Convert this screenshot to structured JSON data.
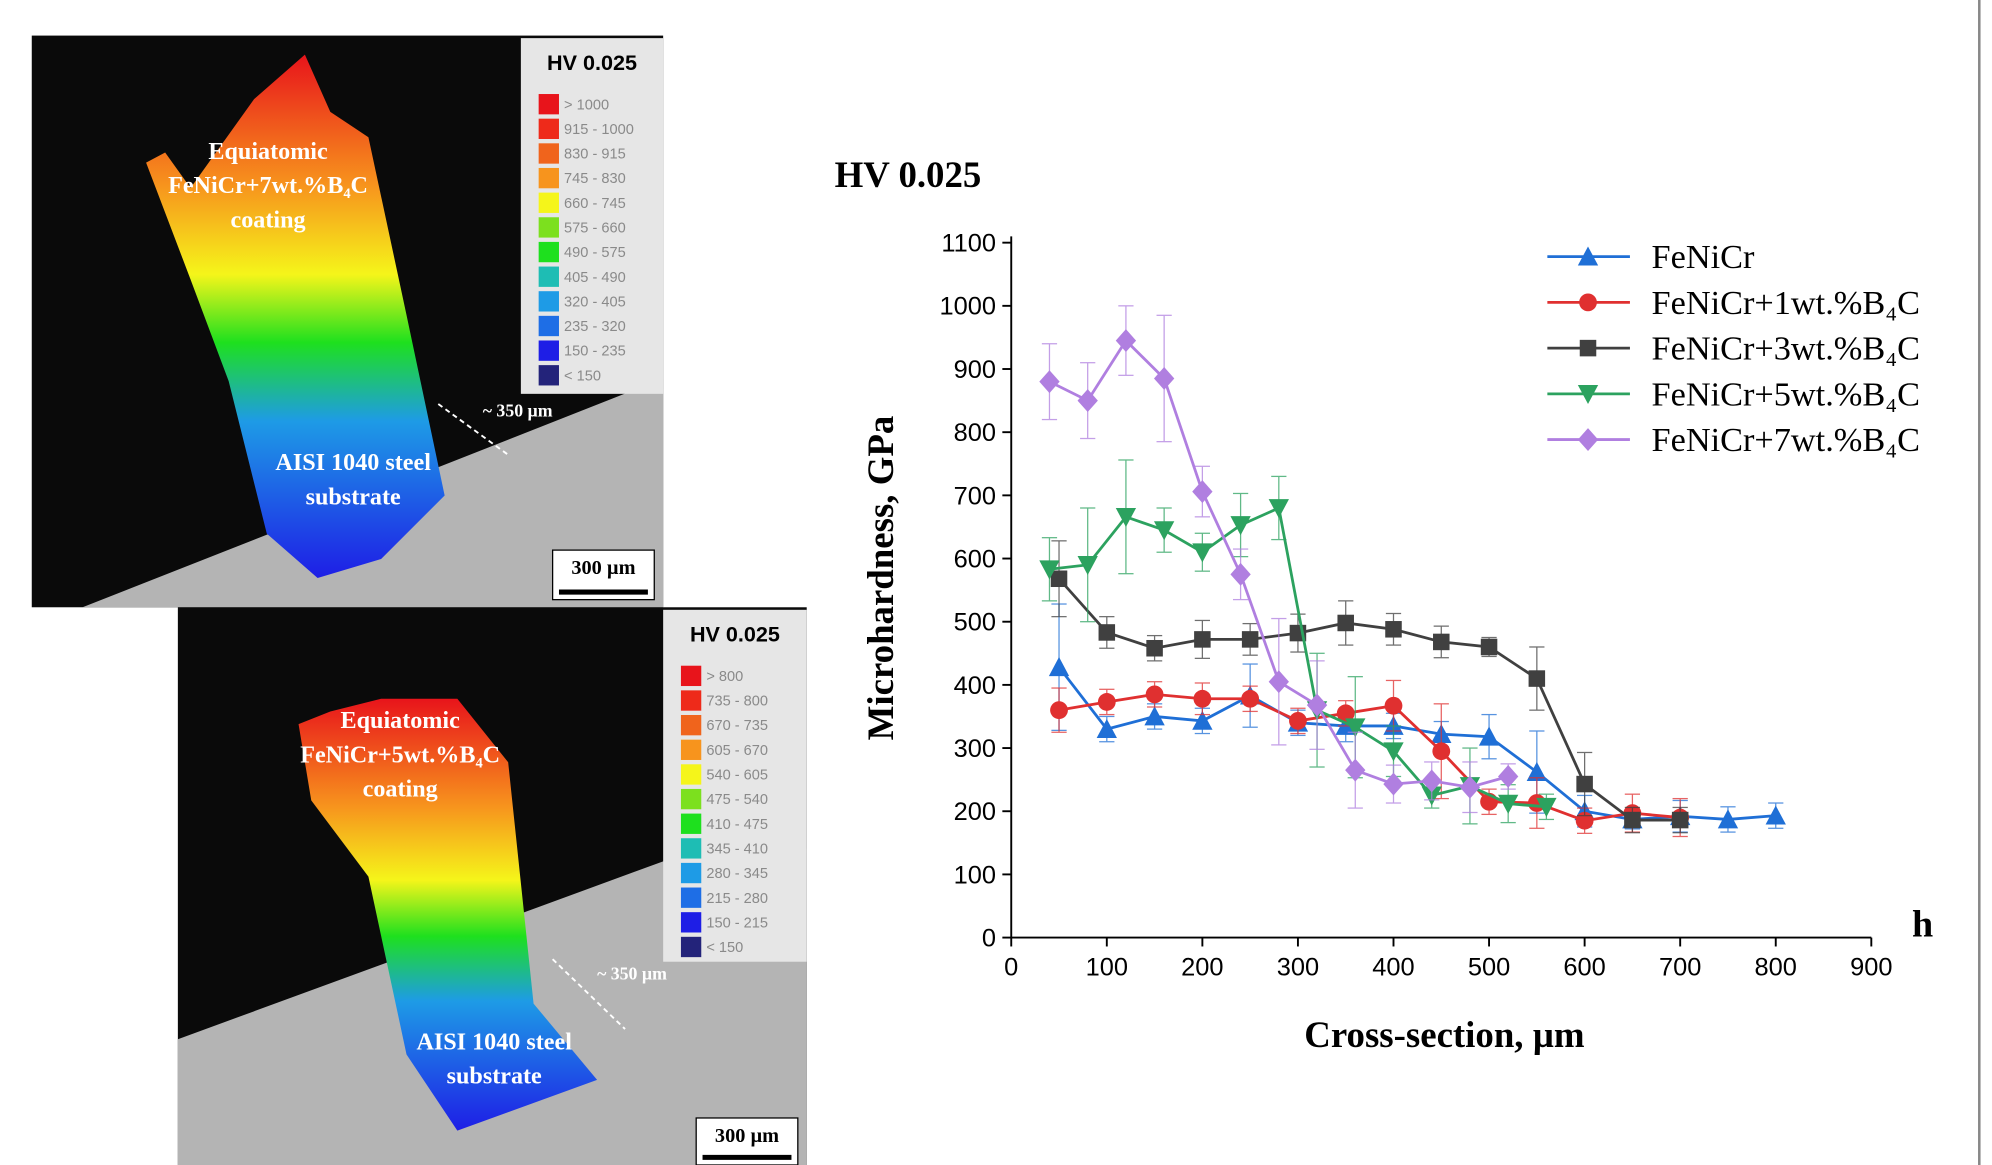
{
  "maps": [
    {
      "legend_title": "HV 0.025",
      "legend": [
        {
          "label": "> 1000",
          "color": "#e8141b"
        },
        {
          "label": "915 - 1000",
          "color": "#ee2a1a"
        },
        {
          "label": "830 - 915",
          "color": "#f0641c"
        },
        {
          "label": "745 - 830",
          "color": "#f7941d"
        },
        {
          "label": "660 - 745",
          "color": "#f5f51a"
        },
        {
          "label": "575 - 660",
          "color": "#7ce01e"
        },
        {
          "label": "490 - 575",
          "color": "#1ee01e"
        },
        {
          "label": "405 - 490",
          "color": "#1ebdb4"
        },
        {
          "label": "320 - 405",
          "color": "#1e9be6"
        },
        {
          "label": "235 - 320",
          "color": "#1e6ee6"
        },
        {
          "label": "150 - 235",
          "color": "#1e1ee6"
        },
        {
          "label": "< 150",
          "color": "#23237a"
        }
      ],
      "coating_label": [
        "Equiatomic",
        "FeNiCr+7wt.%B₄C",
        "coating"
      ],
      "distance_label": "~ 350 µm",
      "substrate_label": [
        "AISI 1040 steel",
        "substrate"
      ],
      "scale_bar": "300 µm"
    },
    {
      "legend_title": "HV 0.025",
      "legend": [
        {
          "label": "> 800",
          "color": "#e8141b"
        },
        {
          "label": "735 - 800",
          "color": "#ee2a1a"
        },
        {
          "label": "670 - 735",
          "color": "#f0641c"
        },
        {
          "label": "605 - 670",
          "color": "#f7941d"
        },
        {
          "label": "540 - 605",
          "color": "#f5f51a"
        },
        {
          "label": "475 - 540",
          "color": "#7ce01e"
        },
        {
          "label": "410 - 475",
          "color": "#1ee01e"
        },
        {
          "label": "345 - 410",
          "color": "#1ebdb4"
        },
        {
          "label": "280 - 345",
          "color": "#1e9be6"
        },
        {
          "label": "215 - 280",
          "color": "#1e6ee6"
        },
        {
          "label": "150 - 215",
          "color": "#1e1ee6"
        },
        {
          "label": "< 150",
          "color": "#23237a"
        }
      ],
      "coating_label": [
        "Equiatomic",
        "FeNiCr+5wt.%B₄C",
        "coating"
      ],
      "distance_label": "~ 350 µm",
      "substrate_label": [
        "AISI 1040 steel",
        "substrate"
      ],
      "scale_bar": "300 µm"
    }
  ],
  "chart_data": {
    "type": "line",
    "title": "HV 0.025",
    "y_label": "Microhardness, GPa",
    "x_label": "Cross-section, µm",
    "x_axis_end_label": "h",
    "xlim": [
      0,
      900
    ],
    "xticks": [
      0,
      100,
      200,
      300,
      400,
      500,
      600,
      700,
      800,
      900
    ],
    "ylim": [
      0,
      1100
    ],
    "yticks": [
      0,
      100,
      200,
      300,
      400,
      500,
      600,
      700,
      800,
      900,
      1000,
      1100
    ],
    "legend_position": "upper right",
    "series": [
      {
        "name": "FeNiCr",
        "color": "#1f6fd6",
        "marker": "triangle-up",
        "x": [
          50,
          100,
          150,
          200,
          250,
          300,
          350,
          400,
          450,
          500,
          550,
          600,
          650,
          700,
          750,
          800
        ],
        "values": [
          428,
          330,
          350,
          343,
          383,
          340,
          335,
          335,
          322,
          318,
          262,
          200,
          187,
          192,
          187,
          193
        ],
        "errors": [
          100,
          20,
          20,
          20,
          50,
          20,
          25,
          20,
          20,
          35,
          65,
          25,
          15,
          25,
          20,
          20
        ]
      },
      {
        "name": "FeNiCr+1wt.%B₄C",
        "color": "#e03030",
        "marker": "circle",
        "x": [
          50,
          100,
          150,
          200,
          250,
          300,
          350,
          400,
          450,
          500,
          550,
          600,
          650,
          700
        ],
        "values": [
          360,
          373,
          385,
          378,
          378,
          343,
          355,
          367,
          295,
          215,
          213,
          185,
          197,
          190
        ],
        "errors": [
          35,
          20,
          20,
          25,
          20,
          20,
          20,
          40,
          75,
          20,
          40,
          20,
          30,
          30
        ]
      },
      {
        "name": "FeNiCr+3wt.%B₄C",
        "color": "#404040",
        "marker": "square",
        "x": [
          50,
          100,
          150,
          200,
          250,
          300,
          350,
          400,
          450,
          500,
          550,
          600,
          650,
          700
        ],
        "values": [
          568,
          483,
          458,
          472,
          472,
          482,
          498,
          488,
          468,
          460,
          410,
          243,
          186,
          186
        ],
        "errors": [
          60,
          25,
          20,
          30,
          25,
          30,
          35,
          25,
          25,
          15,
          50,
          50,
          20,
          20
        ]
      },
      {
        "name": "FeNiCr+5wt.%B₄C",
        "color": "#2ca25f",
        "marker": "triangle-down",
        "x": [
          40,
          80,
          120,
          160,
          200,
          240,
          280,
          320,
          360,
          400,
          440,
          480,
          520,
          560
        ],
        "values": [
          583,
          590,
          666,
          645,
          610,
          653,
          680,
          360,
          333,
          295,
          225,
          240,
          212,
          207
        ],
        "errors": [
          50,
          90,
          90,
          35,
          30,
          50,
          50,
          90,
          80,
          40,
          20,
          60,
          30,
          20
        ]
      },
      {
        "name": "FeNiCr+7wt.%B₄C",
        "color": "#b07fe0",
        "marker": "diamond",
        "x": [
          40,
          80,
          120,
          160,
          200,
          240,
          280,
          320,
          360,
          400,
          440,
          480,
          520
        ],
        "values": [
          880,
          850,
          945,
          885,
          706,
          575,
          405,
          368,
          265,
          243,
          248,
          238,
          255
        ],
        "errors": [
          60,
          60,
          55,
          100,
          40,
          40,
          100,
          70,
          60,
          30,
          30,
          40,
          20
        ]
      }
    ]
  }
}
